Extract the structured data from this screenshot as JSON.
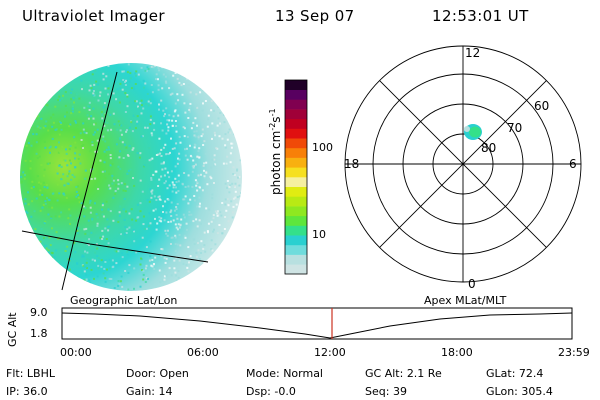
{
  "header": {
    "instrument": "Ultraviolet Imager",
    "date": "13 Sep 07",
    "time": "12:53:01 UT"
  },
  "colorbar": {
    "label": "photon cm-2s-1",
    "ticks": [
      {
        "label": "100",
        "value": 100
      },
      {
        "label": "10",
        "value": 10
      }
    ],
    "colors": [
      "#cfe4e4",
      "#b8e0e0",
      "#6fdcdc",
      "#2ad0d0",
      "#34e08a",
      "#5ee63c",
      "#8ee820",
      "#b8ea14",
      "#e0ec12",
      "#f5f0a0",
      "#f6e020",
      "#f8b010",
      "#f88008",
      "#f04a08",
      "#e01010",
      "#c00020",
      "#a00038",
      "#800050",
      "#580060",
      "#200028"
    ],
    "scale": "log"
  },
  "polar_plot": {
    "mlt_labels": {
      "top": "12",
      "bottom": "0",
      "left": "18",
      "right": "6"
    },
    "lat_labels": [
      "60",
      "70",
      "80"
    ]
  },
  "timeline": {
    "left_title": "Geographic Lat/Lon",
    "right_title": "Apex MLat/MLT",
    "y_axis_title": "GC Alt",
    "y_ticks": [
      "9.0",
      "1.8"
    ],
    "x_ticks": [
      "00:00",
      "06:00",
      "12:00",
      "18:00",
      "23:59"
    ],
    "current_time": "12:53"
  },
  "status": {
    "row1": [
      {
        "label": "Flt:",
        "value": "LBHL"
      },
      {
        "label": "Door:",
        "value": "Open"
      },
      {
        "label": "Mode:",
        "value": "Normal"
      },
      {
        "label": "GC Alt:",
        "value": "2.1 Re"
      },
      {
        "label": "GLat:",
        "value": "72.4"
      }
    ],
    "row2": [
      {
        "label": "IP:",
        "value": "36.0"
      },
      {
        "label": "Gain:",
        "value": "14"
      },
      {
        "label": "Dsp:",
        "value": "-0.0"
      },
      {
        "label": "Seq:",
        "value": "39"
      },
      {
        "label": "GLon:",
        "value": "305.4"
      }
    ]
  }
}
